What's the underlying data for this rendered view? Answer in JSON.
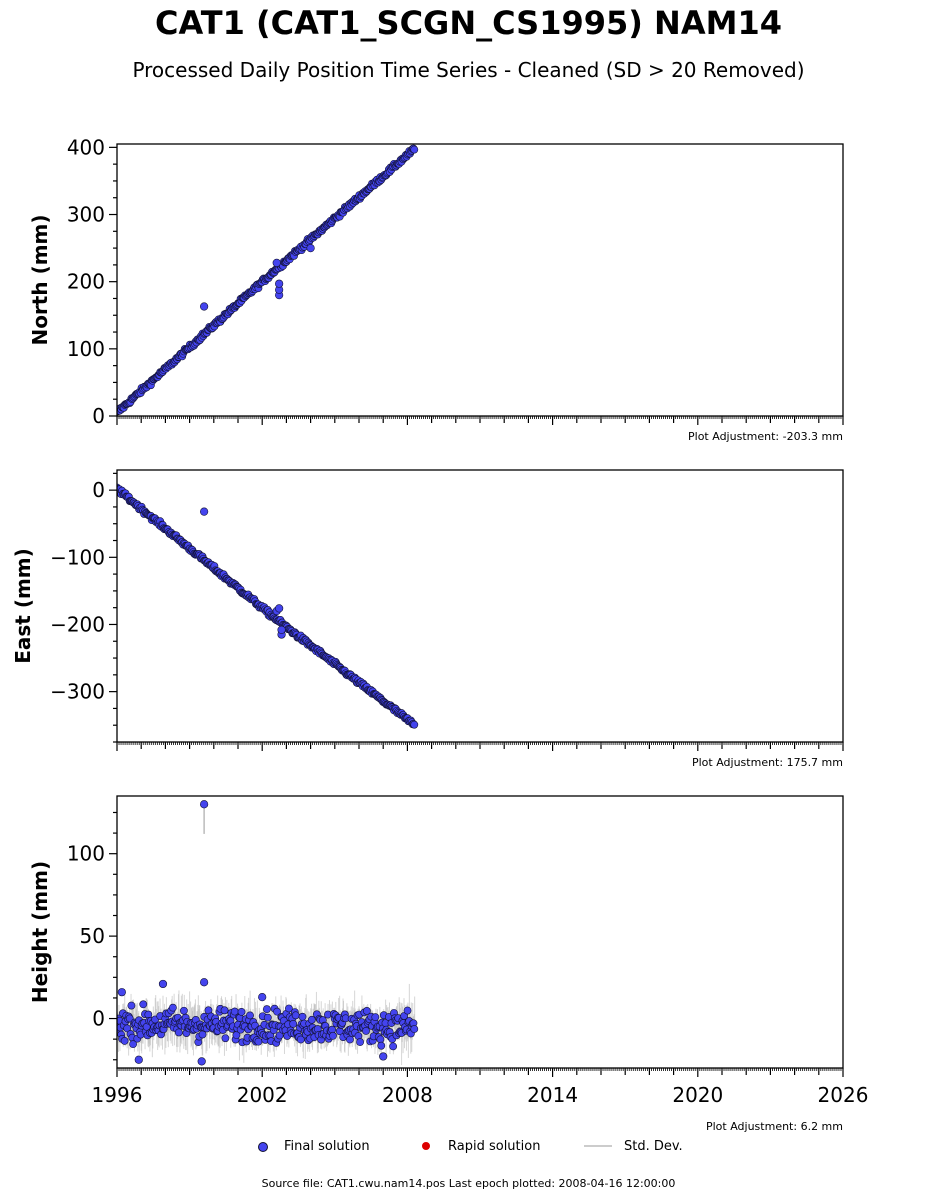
{
  "title": "CAT1 (CAT1_SCGN_CS1995) NAM14",
  "subtitle": "Processed Daily Position Time Series - Cleaned (SD > 20 Removed)",
  "source_line": "Source file: CAT1.cwu.nam14.pos  Last epoch plotted: 2008-04-16 12:00:00",
  "colors": {
    "final": "#4444ee",
    "final_edge": "#111133",
    "rapid": "#dd0000",
    "stddev": "#bbbbbb"
  },
  "legend": [
    {
      "label": "Final solution",
      "kind": "dot",
      "color": "#4444ee"
    },
    {
      "label": "Rapid solution",
      "kind": "dot",
      "color": "#dd0000"
    },
    {
      "label": "Std. Dev.",
      "kind": "line",
      "color": "#cccccc"
    }
  ],
  "chart_data": [
    {
      "type": "scatter",
      "ylabel": "North (mm)",
      "xlim": [
        1996,
        2026
      ],
      "ylim": [
        0,
        405
      ],
      "yticks": [
        0,
        100,
        200,
        300,
        400
      ],
      "xtick_labels_shown": false,
      "adjustment": "Plot Adjustment: -203.3 mm",
      "series": [
        {
          "trend": [
            [
              1996.0,
              5
            ],
            [
              2002.5,
              216
            ],
            [
              2008.3,
              398
            ]
          ],
          "outliers": [
            [
              1999.6,
              163
            ],
            [
              2002.7,
              180
            ],
            [
              2002.7,
              188
            ],
            [
              2002.7,
              197
            ],
            [
              2002.6,
              228
            ],
            [
              2004.0,
              250
            ]
          ],
          "scatter_mm": 2.5
        }
      ]
    },
    {
      "type": "scatter",
      "ylabel": "East (mm)",
      "xlim": [
        1996,
        2026
      ],
      "ylim": [
        -375,
        30
      ],
      "yticks": [
        0,
        -100,
        -200,
        -300
      ],
      "xtick_labels_shown": false,
      "adjustment": "Plot Adjustment: 175.7 mm",
      "series": [
        {
          "trend": [
            [
              1996.0,
              2
            ],
            [
              2002.5,
              -190
            ],
            [
              2008.3,
              -350
            ]
          ],
          "outliers": [
            [
              1999.6,
              -32
            ],
            [
              2002.8,
              -215
            ],
            [
              2002.8,
              -208
            ],
            [
              2002.6,
              -180
            ],
            [
              2002.7,
              -176
            ]
          ],
          "scatter_mm": 2.5
        }
      ]
    },
    {
      "type": "scatter",
      "ylabel": "Height (mm)",
      "xlim": [
        1996,
        2026
      ],
      "ylim": [
        -30,
        135
      ],
      "yticks": [
        0,
        50,
        100
      ],
      "xticks": [
        1996,
        2002,
        2008,
        2014,
        2020,
        2026
      ],
      "xtick_labels_shown": true,
      "adjustment": "Plot Adjustment: 6.2 mm",
      "series": [
        {
          "trend": [
            [
              1996.0,
              -3
            ],
            [
              2008.3,
              -5
            ]
          ],
          "outliers": [
            [
              1999.6,
              130
            ],
            [
              1999.6,
              22
            ],
            [
              1997.9,
              21
            ],
            [
              1996.2,
              16
            ],
            [
              2002.0,
              13
            ],
            [
              2007.0,
              -23
            ],
            [
              1999.5,
              -26
            ],
            [
              1996.9,
              -25
            ]
          ],
          "scatter_mm": 7,
          "stddev_mm": 8
        }
      ]
    }
  ]
}
